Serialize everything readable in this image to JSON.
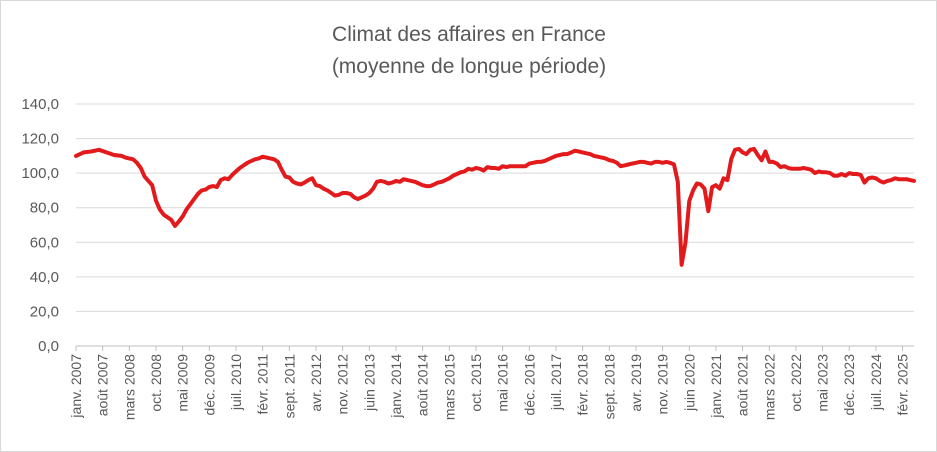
{
  "chart_data": {
    "type": "line",
    "title": "Climat des affaires en France",
    "subtitle": "(moyenne de longue période)",
    "xlabel": "",
    "ylabel": "",
    "ylim": [
      0,
      140
    ],
    "y_ticks": [
      "0,0",
      "20,0",
      "40,0",
      "60,0",
      "80,0",
      "100,0",
      "120,0",
      "140,0"
    ],
    "grid": true,
    "legend": "none",
    "x_start": "2007-01",
    "x_end": "2025-05",
    "x_tick_labels": [
      {
        "date": "2007-01",
        "label": "janv. 2007"
      },
      {
        "date": "2007-08",
        "label": "août 2007"
      },
      {
        "date": "2008-03",
        "label": "mars 2008"
      },
      {
        "date": "2008-10",
        "label": "oct. 2008"
      },
      {
        "date": "2009-05",
        "label": "mai 2009"
      },
      {
        "date": "2009-12",
        "label": "déc. 2009"
      },
      {
        "date": "2010-07",
        "label": "juil. 2010"
      },
      {
        "date": "2011-02",
        "label": "févr. 2011"
      },
      {
        "date": "2011-09",
        "label": "sept. 2011"
      },
      {
        "date": "2012-04",
        "label": "avr. 2012"
      },
      {
        "date": "2012-11",
        "label": "nov. 2012"
      },
      {
        "date": "2013-06",
        "label": "juin 2013"
      },
      {
        "date": "2014-01",
        "label": "janv. 2014"
      },
      {
        "date": "2014-08",
        "label": "août 2014"
      },
      {
        "date": "2015-03",
        "label": "mars 2015"
      },
      {
        "date": "2015-10",
        "label": "oct. 2015"
      },
      {
        "date": "2016-05",
        "label": "mai 2016"
      },
      {
        "date": "2016-12",
        "label": "déc. 2016"
      },
      {
        "date": "2017-07",
        "label": "juil. 2017"
      },
      {
        "date": "2018-02",
        "label": "févr. 2018"
      },
      {
        "date": "2018-09",
        "label": "sept. 2018"
      },
      {
        "date": "2019-04",
        "label": "avr. 2019"
      },
      {
        "date": "2019-11",
        "label": "nov. 2019"
      },
      {
        "date": "2020-06",
        "label": "juin 2020"
      },
      {
        "date": "2021-01",
        "label": "janv. 2021"
      },
      {
        "date": "2021-08",
        "label": "août 2021"
      },
      {
        "date": "2022-03",
        "label": "mars 2022"
      },
      {
        "date": "2022-10",
        "label": "oct. 2022"
      },
      {
        "date": "2023-05",
        "label": "mai 2023"
      },
      {
        "date": "2023-12",
        "label": "déc. 2023"
      },
      {
        "date": "2024-07",
        "label": "juil. 2024"
      },
      {
        "date": "2025-02",
        "label": "févr. 2025"
      }
    ],
    "series": [
      {
        "color": "#e31a1c",
        "points": [
          [
            "2007-01",
            110
          ],
          [
            "2007-03",
            112
          ],
          [
            "2007-05",
            112.5
          ],
          [
            "2007-07",
            113.5
          ],
          [
            "2007-09",
            112
          ],
          [
            "2007-11",
            110.5
          ],
          [
            "2008-01",
            110
          ],
          [
            "2008-02",
            109
          ],
          [
            "2008-04",
            108
          ],
          [
            "2008-05",
            106
          ],
          [
            "2008-06",
            103
          ],
          [
            "2008-07",
            98
          ],
          [
            "2008-08",
            95.5
          ],
          [
            "2008-09",
            93
          ],
          [
            "2008-10",
            84
          ],
          [
            "2008-11",
            79
          ],
          [
            "2008-12",
            76
          ],
          [
            "2009-01",
            74.5
          ],
          [
            "2009-02",
            73
          ],
          [
            "2009-03",
            69.5
          ],
          [
            "2009-04",
            72
          ],
          [
            "2009-05",
            75
          ],
          [
            "2009-06",
            79
          ],
          [
            "2009-07",
            82
          ],
          [
            "2009-08",
            85
          ],
          [
            "2009-09",
            88
          ],
          [
            "2009-10",
            90
          ],
          [
            "2009-11",
            90.5
          ],
          [
            "2009-12",
            92
          ],
          [
            "2010-01",
            92.5
          ],
          [
            "2010-02",
            92
          ],
          [
            "2010-03",
            96
          ],
          [
            "2010-04",
            97
          ],
          [
            "2010-05",
            96.5
          ],
          [
            "2010-06",
            99
          ],
          [
            "2010-07",
            101
          ],
          [
            "2010-08",
            103
          ],
          [
            "2010-09",
            104.5
          ],
          [
            "2010-10",
            106
          ],
          [
            "2010-11",
            107
          ],
          [
            "2010-12",
            108
          ],
          [
            "2011-01",
            108.5
          ],
          [
            "2011-02",
            109.5
          ],
          [
            "2011-03",
            109
          ],
          [
            "2011-04",
            108.5
          ],
          [
            "2011-05",
            108
          ],
          [
            "2011-06",
            106.5
          ],
          [
            "2011-07",
            102
          ],
          [
            "2011-08",
            98
          ],
          [
            "2011-09",
            97.5
          ],
          [
            "2011-10",
            95
          ],
          [
            "2011-11",
            94
          ],
          [
            "2011-12",
            93.5
          ],
          [
            "2012-01",
            94.5
          ],
          [
            "2012-02",
            96
          ],
          [
            "2012-03",
            97
          ],
          [
            "2012-04",
            93
          ],
          [
            "2012-05",
            92.5
          ],
          [
            "2012-06",
            91
          ],
          [
            "2012-07",
            90
          ],
          [
            "2012-08",
            88.5
          ],
          [
            "2012-09",
            87
          ],
          [
            "2012-10",
            87.5
          ],
          [
            "2012-11",
            88.5
          ],
          [
            "2012-12",
            88.5
          ],
          [
            "2013-01",
            88
          ],
          [
            "2013-02",
            86
          ],
          [
            "2013-03",
            85
          ],
          [
            "2013-04",
            86
          ],
          [
            "2013-05",
            87
          ],
          [
            "2013-06",
            88.5
          ],
          [
            "2013-07",
            91
          ],
          [
            "2013-08",
            95
          ],
          [
            "2013-09",
            95.5
          ],
          [
            "2013-10",
            95
          ],
          [
            "2013-11",
            94
          ],
          [
            "2013-12",
            94.5
          ],
          [
            "2014-01",
            95.5
          ],
          [
            "2014-02",
            95
          ],
          [
            "2014-03",
            96.5
          ],
          [
            "2014-04",
            96
          ],
          [
            "2014-05",
            95.5
          ],
          [
            "2014-06",
            95
          ],
          [
            "2014-07",
            94
          ],
          [
            "2014-08",
            93
          ],
          [
            "2014-09",
            92.5
          ],
          [
            "2014-10",
            92.5
          ],
          [
            "2014-11",
            93.5
          ],
          [
            "2014-12",
            94.5
          ],
          [
            "2015-01",
            95
          ],
          [
            "2015-02",
            96
          ],
          [
            "2015-03",
            97
          ],
          [
            "2015-04",
            98.5
          ],
          [
            "2015-05",
            99.5
          ],
          [
            "2015-06",
            100.5
          ],
          [
            "2015-07",
            101
          ],
          [
            "2015-08",
            102.5
          ],
          [
            "2015-09",
            102
          ],
          [
            "2015-10",
            103
          ],
          [
            "2015-11",
            102.5
          ],
          [
            "2015-12",
            101.5
          ],
          [
            "2016-01",
            103.5
          ],
          [
            "2016-02",
            103
          ],
          [
            "2016-03",
            103
          ],
          [
            "2016-04",
            102.5
          ],
          [
            "2016-05",
            104
          ],
          [
            "2016-06",
            103.5
          ],
          [
            "2016-07",
            104
          ],
          [
            "2016-08",
            104
          ],
          [
            "2016-09",
            104
          ],
          [
            "2016-10",
            104
          ],
          [
            "2016-11",
            104
          ],
          [
            "2016-12",
            105.5
          ],
          [
            "2017-01",
            106
          ],
          [
            "2017-02",
            106.5
          ],
          [
            "2017-03",
            106.5
          ],
          [
            "2017-04",
            107
          ],
          [
            "2017-05",
            108
          ],
          [
            "2017-06",
            109
          ],
          [
            "2017-07",
            110
          ],
          [
            "2017-08",
            110.5
          ],
          [
            "2017-09",
            111
          ],
          [
            "2017-10",
            111
          ],
          [
            "2017-11",
            112
          ],
          [
            "2017-12",
            113
          ],
          [
            "2018-01",
            112.5
          ],
          [
            "2018-02",
            112
          ],
          [
            "2018-03",
            111.5
          ],
          [
            "2018-04",
            111
          ],
          [
            "2018-05",
            110
          ],
          [
            "2018-06",
            109.5
          ],
          [
            "2018-07",
            109
          ],
          [
            "2018-08",
            108.5
          ],
          [
            "2018-09",
            107.5
          ],
          [
            "2018-10",
            107
          ],
          [
            "2018-11",
            106
          ],
          [
            "2018-12",
            104
          ],
          [
            "2019-01",
            104.5
          ],
          [
            "2019-02",
            105
          ],
          [
            "2019-03",
            105.5
          ],
          [
            "2019-04",
            106
          ],
          [
            "2019-05",
            106.5
          ],
          [
            "2019-06",
            106.5
          ],
          [
            "2019-07",
            106
          ],
          [
            "2019-08",
            105.5
          ],
          [
            "2019-09",
            106.5
          ],
          [
            "2019-10",
            106.5
          ],
          [
            "2019-11",
            106
          ],
          [
            "2019-12",
            106.5
          ],
          [
            "2020-01",
            106
          ],
          [
            "2020-02",
            105
          ],
          [
            "2020-03",
            95
          ],
          [
            "2020-04",
            47
          ],
          [
            "2020-05",
            60
          ],
          [
            "2020-06",
            84
          ],
          [
            "2020-07",
            90
          ],
          [
            "2020-08",
            94
          ],
          [
            "2020-09",
            93.5
          ],
          [
            "2020-10",
            91
          ],
          [
            "2020-11",
            78
          ],
          [
            "2020-12",
            92
          ],
          [
            "2021-01",
            93
          ],
          [
            "2021-02",
            91
          ],
          [
            "2021-03",
            97
          ],
          [
            "2021-04",
            96
          ],
          [
            "2021-05",
            108
          ],
          [
            "2021-06",
            113.5
          ],
          [
            "2021-07",
            114
          ],
          [
            "2021-08",
            112
          ],
          [
            "2021-09",
            111
          ],
          [
            "2021-10",
            113.5
          ],
          [
            "2021-11",
            114
          ],
          [
            "2021-12",
            110.5
          ],
          [
            "2022-01",
            107.5
          ],
          [
            "2022-02",
            112.5
          ],
          [
            "2022-03",
            106.5
          ],
          [
            "2022-04",
            106.5
          ],
          [
            "2022-05",
            105.5
          ],
          [
            "2022-06",
            103.5
          ],
          [
            "2022-07",
            104
          ],
          [
            "2022-08",
            103
          ],
          [
            "2022-09",
            102.5
          ],
          [
            "2022-10",
            102.5
          ],
          [
            "2022-11",
            102.5
          ],
          [
            "2022-12",
            103
          ],
          [
            "2023-01",
            102.5
          ],
          [
            "2023-02",
            102
          ],
          [
            "2023-03",
            100
          ],
          [
            "2023-04",
            101
          ],
          [
            "2023-05",
            100.5
          ],
          [
            "2023-06",
            100.5
          ],
          [
            "2023-07",
            100
          ],
          [
            "2023-08",
            98.5
          ],
          [
            "2023-09",
            98.5
          ],
          [
            "2023-10",
            99.5
          ],
          [
            "2023-11",
            98.5
          ],
          [
            "2023-12",
            100
          ],
          [
            "2024-01",
            99.5
          ],
          [
            "2024-02",
            99.5
          ],
          [
            "2024-03",
            99
          ],
          [
            "2024-04",
            94.5
          ],
          [
            "2024-05",
            97
          ],
          [
            "2024-06",
            97.5
          ],
          [
            "2024-07",
            97
          ],
          [
            "2024-08",
            95.5
          ],
          [
            "2024-09",
            94.5
          ],
          [
            "2024-10",
            95.5
          ],
          [
            "2024-11",
            96
          ],
          [
            "2024-12",
            97
          ],
          [
            "2025-01",
            96.5
          ],
          [
            "2025-02",
            96.5
          ],
          [
            "2025-03",
            96.5
          ],
          [
            "2025-04",
            96
          ],
          [
            "2025-05",
            95.5
          ]
        ]
      }
    ]
  }
}
